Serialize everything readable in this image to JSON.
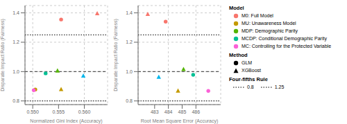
{
  "chart_data": [
    {
      "type": "scatter",
      "xlabel": "Normalized Gini Index (Accuracy)",
      "ylabel": "Disparate Impact Ratio (Fairness)",
      "xlim": [
        0.5485,
        0.5645
      ],
      "xticks": [
        {
          "value": 0.55,
          "label": "0.550"
        },
        {
          "value": 0.555,
          "label": "0.555"
        },
        {
          "value": 0.56,
          "label": "0.560"
        }
      ],
      "ylim": [
        0.775,
        1.45
      ],
      "yticks": [
        0.8,
        {
          "value": 1.0,
          "label": "1.0"
        },
        1.2,
        1.4
      ],
      "grid": true,
      "hlines": [
        {
          "y": 0.8,
          "line_style": "dotted",
          "color": "#333333"
        },
        {
          "y": 1.0,
          "line_style": "dashed",
          "color": "#555555"
        },
        {
          "y": 1.25,
          "line_style": "dotted",
          "color": "#333333"
        }
      ],
      "series": [
        {
          "name": "GLM",
          "marker": "circle",
          "x": [
            0.5555,
            0.5505,
            0.5525,
            0.5502
          ],
          "values": [
            1.355,
            0.878,
            0.988,
            0.873
          ],
          "colors": [
            "#F8766D",
            "#C49A00",
            "#00C094",
            "#FB61D7"
          ]
        },
        {
          "name": "XGBoost",
          "marker": "triangle",
          "x": [
            0.5625,
            0.5555,
            0.5548,
            0.5598
          ],
          "values": [
            1.395,
            0.878,
            1.005,
            0.97
          ],
          "colors": [
            "#F8766D",
            "#C49A00",
            "#53B400",
            "#00B6EB"
          ]
        }
      ]
    },
    {
      "type": "scatter",
      "xlabel": "Root Mean Square Error (Accuracy)",
      "ylabel": "Disparate Impact Ratio (Fairness)",
      "xlim": [
        481.8,
        487.8
      ],
      "xticks": [
        483,
        484,
        485,
        486
      ],
      "ylim": [
        0.775,
        1.45
      ],
      "yticks": [
        0.8,
        {
          "value": 1.0,
          "label": "1.0"
        },
        1.2,
        1.4
      ],
      "grid": true,
      "hlines": [
        {
          "y": 0.8,
          "line_style": "dotted",
          "color": "#333333"
        },
        {
          "y": 1.0,
          "line_style": "dashed",
          "color": "#555555"
        },
        {
          "y": 1.25,
          "line_style": "dotted",
          "color": "#333333"
        }
      ],
      "series": [
        {
          "name": "GLM",
          "marker": "circle",
          "x": [
            483.8,
            485.8,
            486.9
          ],
          "values": [
            1.34,
            0.978,
            0.868
          ],
          "colors": [
            "#F8766D",
            "#00C094",
            "#FB61D7"
          ]
        },
        {
          "name": "XGBoost",
          "marker": "triangle",
          "x": [
            482.5,
            484.7,
            485.1,
            483.3
          ],
          "values": [
            1.39,
            0.868,
            1.015,
            0.962
          ],
          "colors": [
            "#F8766D",
            "#C49A00",
            "#53B400",
            "#00B6EB"
          ]
        }
      ]
    }
  ],
  "legend_panel": {
    "model_title": "Model",
    "models": [
      {
        "name": "M0: Full Model",
        "color": "#F8766D",
        "marker": "circle"
      },
      {
        "name": "MU: Unawareness Model",
        "color": "#C49A00",
        "marker": "circle"
      },
      {
        "name": "MDP: Demographic Parity",
        "color": "#53B400",
        "marker": "circle"
      },
      {
        "name": "MCDP: Conditional Demographic Parity",
        "color": "#00C094",
        "marker": "circle"
      },
      {
        "name": "MC: Controlling for the Protected Variable",
        "color": "#FB61D7",
        "marker": "circle"
      }
    ],
    "method_title": "Method",
    "rule_title": "Four-fifths Rule",
    "rule_values": [
      0.8,
      1.25
    ],
    "rule_line_style": "dotted"
  }
}
